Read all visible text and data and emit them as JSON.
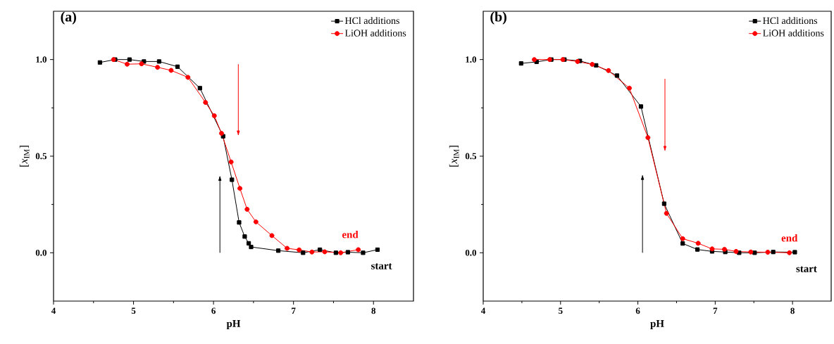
{
  "chart_data": [
    {
      "type": "line",
      "title": "(a)",
      "xlabel": "pH",
      "ylabel": "[*x*$_{IM}$]",
      "series": [
        {
          "name": "HCl additions",
          "color": "#000000",
          "marker": "square",
          "x": [
            4.58,
            4.77,
            4.95,
            5.13,
            5.32,
            5.55,
            5.83,
            6.12,
            6.23,
            6.32,
            6.39,
            6.44,
            6.47,
            6.81,
            7.12,
            7.33,
            7.53,
            7.68,
            7.87,
            8.05
          ],
          "values": [
            0.985,
            1.0,
            1.0,
            0.99,
            0.99,
            0.963,
            0.852,
            0.603,
            0.378,
            0.157,
            0.084,
            0.049,
            0.03,
            0.011,
            0.0,
            0.016,
            0.0,
            0.003,
            0.0,
            0.016
          ]
        },
        {
          "name": "LiOH additions",
          "color": "#ff0000",
          "marker": "circle",
          "x": [
            4.75,
            4.92,
            5.1,
            5.3,
            5.47,
            5.68,
            5.9,
            6.01,
            6.1,
            6.22,
            6.33,
            6.42,
            6.53,
            6.73,
            6.92,
            7.07,
            7.23,
            7.39,
            7.59,
            7.81
          ],
          "values": [
            1.0,
            0.976,
            0.978,
            0.96,
            0.944,
            0.908,
            0.778,
            0.709,
            0.618,
            0.47,
            0.333,
            0.225,
            0.16,
            0.089,
            0.023,
            0.015,
            0.004,
            0.005,
            0.0,
            0.016
          ]
        }
      ],
      "annotations": [
        "end",
        "start"
      ],
      "xlim": [
        4,
        8.5
      ],
      "xticks": [
        4,
        5,
        6,
        7,
        8
      ],
      "ylim": [
        -0.25,
        1.25
      ],
      "yticks": [
        {
          "value": 0,
          "label": "0.0"
        },
        {
          "value": 0.5,
          "label": "0.5"
        },
        {
          "value": 1,
          "label": "1.0"
        }
      ],
      "grid": false,
      "legend": "top right",
      "line_style": "solid"
    },
    {
      "type": "line",
      "title": "(b)",
      "xlabel": "pH",
      "ylabel": "[*x*$_{IM}$]",
      "series": [
        {
          "name": "HCl additions",
          "color": "#000000",
          "marker": "square",
          "x": [
            4.49,
            4.69,
            4.88,
            5.05,
            5.25,
            5.46,
            5.73,
            6.04,
            6.34,
            6.58,
            6.77,
            6.96,
            7.13,
            7.31,
            7.51,
            7.75,
            8.03
          ],
          "values": [
            0.98,
            0.988,
            1.0,
            1.0,
            0.993,
            0.97,
            0.917,
            0.757,
            0.254,
            0.048,
            0.017,
            0.007,
            0.004,
            0.0,
            0.0,
            0.004,
            0.003
          ]
        },
        {
          "name": "LiOH additions",
          "color": "#ff0000",
          "marker": "circle",
          "x": [
            4.66,
            4.86,
            5.03,
            5.22,
            5.41,
            5.62,
            5.89,
            6.13,
            6.37,
            6.58,
            6.78,
            6.96,
            7.12,
            7.27,
            7.46,
            7.68,
            7.96
          ],
          "values": [
            1.0,
            1.0,
            1.0,
            0.99,
            0.975,
            0.943,
            0.852,
            0.596,
            0.204,
            0.073,
            0.049,
            0.02,
            0.018,
            0.007,
            0.004,
            0.003,
            0.0
          ]
        }
      ],
      "annotations": [
        "end",
        "start"
      ],
      "xlim": [
        4,
        8.5
      ],
      "xticks": [
        4,
        5,
        6,
        7,
        8
      ],
      "ylim": [
        -0.25,
        1.25
      ],
      "yticks": [
        {
          "value": 0,
          "label": "0.0"
        },
        {
          "value": 0.5,
          "label": "0.5"
        },
        {
          "value": 1,
          "label": "1.0"
        }
      ],
      "grid": false,
      "legend": "top right",
      "line_style": "solid"
    }
  ]
}
